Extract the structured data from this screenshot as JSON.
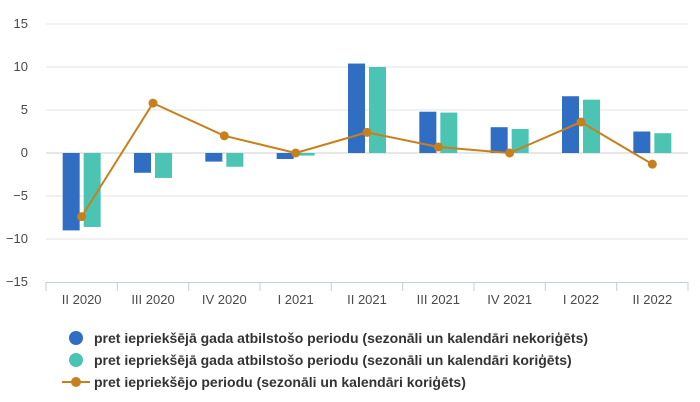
{
  "chart_data": {
    "type": "bar",
    "categories": [
      "II 2020",
      "III 2020",
      "IV 2020",
      "I 2021",
      "II 2021",
      "III 2021",
      "IV 2021",
      "I 2022",
      "II 2022"
    ],
    "ylim": [
      -15,
      15
    ],
    "yticks": [
      15,
      10,
      5,
      0,
      -5,
      -10,
      -15
    ],
    "ytick_labels": [
      "15",
      "10",
      "5",
      "0",
      "−5",
      "−10",
      "−15"
    ],
    "grid": true,
    "legend_position": "bottom-left",
    "series": [
      {
        "name": "pret iepriekšējā gada atbilstošo periodu (sezonāli un kalendāri nekoriģēts)",
        "kind": "bar",
        "color": "#2f6ec2",
        "values": [
          -9.0,
          -2.3,
          -1.0,
          -0.7,
          10.4,
          4.8,
          3.0,
          6.6,
          2.5
        ]
      },
      {
        "name": "pret iepriekšējā gada atbilstošo periodu (sezonāli un kalendāri koriģēts)",
        "kind": "bar",
        "color": "#4cc4b4",
        "values": [
          -8.6,
          -2.9,
          -1.6,
          -0.3,
          10.0,
          4.7,
          2.8,
          6.2,
          2.3
        ]
      },
      {
        "name": "pret iepriekšējo periodu (sezonāli un kalendāri koriģēts)",
        "kind": "line",
        "color": "#c7801c",
        "values": [
          -7.4,
          5.8,
          2.0,
          0.0,
          2.4,
          0.7,
          0.0,
          3.6,
          -1.3
        ]
      }
    ]
  }
}
